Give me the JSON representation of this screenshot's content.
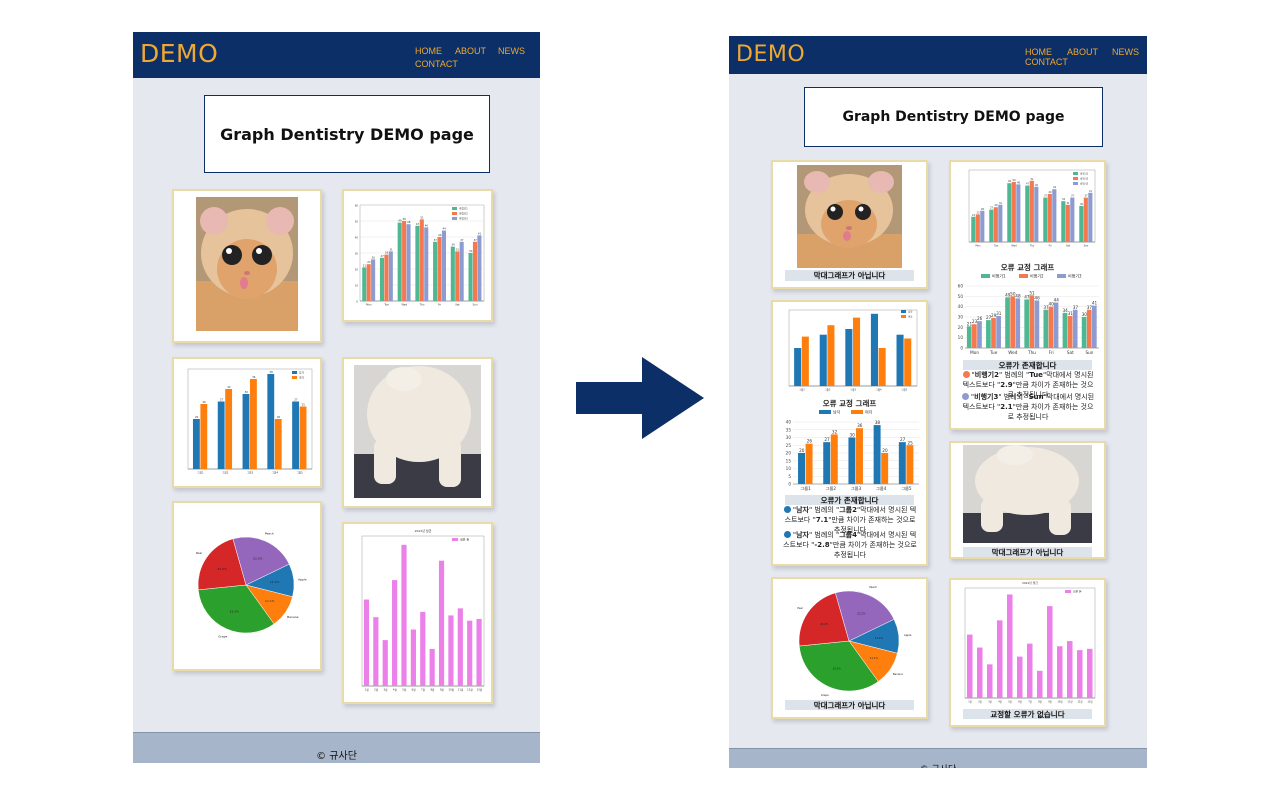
{
  "left_page": {
    "logo": "DEMO",
    "nav": [
      "HOME",
      "ABOUT",
      "NEWS",
      "CONTACT"
    ],
    "title": "Graph Dentistry DEMO page",
    "footer": "© 규사단"
  },
  "right_page": {
    "logo": "DEMO",
    "nav": [
      "HOME",
      "ABOUT",
      "NEWS",
      "CONTACT"
    ],
    "title": "Graph Dentistry DEMO page",
    "footer": "© 규사단",
    "captions": {
      "not_bar_1": "막대그래프가 아닙니다",
      "not_bar_2": "막대그래프가 아닙니다",
      "not_bar_3": "막대그래프가 아닙니다",
      "no_error": "교정할 오류가 없습니다",
      "error_exists_1": "오류가 존재합니다",
      "error_exists_2": "오류가 존재합니다",
      "corrected_1": "오류 교정 그래프",
      "corrected_2": "오류 교정 그래프"
    },
    "notes_1": [
      {
        "color": "#1f77b4",
        "pre": "\"",
        "s1": "남자",
        "m1": "\" 범례의 \"",
        "s2": "그룹2",
        "m2": "\"막대에서 명시된 텍스트보다 \"",
        "s3": "7.1",
        "post": "\"만큼 차이가 존재하는 것으로 추정됩니다"
      },
      {
        "color": "#1f77b4",
        "pre": "\"",
        "s1": "남자",
        "m1": "\" 범례의 \"",
        "s2": "그룹4",
        "m2": "\"막대에서 명시된 텍스트보다 \"",
        "s3": "-2.8",
        "post": "\"만큼 차이가 존재하는 것으로 추정됩니다"
      }
    ],
    "notes_2": [
      {
        "color": "#f4794f",
        "pre": "\"",
        "s1": "비행기2",
        "m1": "\" 범례의 \"",
        "s2": "Tue",
        "m2": "\"막대에서 명시된 텍스트보다 \"",
        "s3": "2.9",
        "post": "\"만큼 차이가 존재하는 것으로 추정됩니다"
      },
      {
        "color": "#8e9bd0",
        "pre": "\"",
        "s1": "비행기3",
        "m1": "\" 범례의 \"",
        "s2": "Sun",
        "m2": "\"막대에서 명시된 텍스트보다 \"",
        "s3": "2.1",
        "post": "\"만큼 차이가 존재하는 것으로 추정됩니다"
      }
    ]
  },
  "colors": {
    "header_bg": "#0b2f66",
    "logo": "#f0a830",
    "card_border": "#e9dba8",
    "page_bg": "#e5e9ef",
    "footer_bg": "#a6b5c9",
    "arrow": "#0b2f66"
  },
  "chart_data": [
    {
      "id": "airplane",
      "type": "bar",
      "categories": [
        "Mon",
        "Tue",
        "Wed",
        "Thu",
        "Fri",
        "Sat",
        "Sun"
      ],
      "series": [
        {
          "name": "비행기1",
          "values": [
            21,
            27,
            49,
            47,
            37,
            34,
            30
          ],
          "color": "#4fb892"
        },
        {
          "name": "비행기2",
          "values": [
            23,
            29,
            50,
            51,
            40,
            31,
            37
          ],
          "color": "#f4794f"
        },
        {
          "name": "비행기3",
          "values": [
            26,
            31,
            48,
            46,
            44,
            37,
            41
          ],
          "color": "#8e9bd0"
        }
      ],
      "ylim": [
        0,
        60
      ],
      "yticks": [
        0,
        10,
        20,
        30,
        40,
        50,
        60
      ]
    },
    {
      "id": "gender",
      "type": "bar",
      "categories": [
        "그룹1",
        "그룹2",
        "그룹3",
        "그룹4",
        "그룹5"
      ],
      "series": [
        {
          "name": "남자",
          "values": [
            20,
            27,
            30,
            38,
            27
          ],
          "color": "#1f77b4"
        },
        {
          "name": "여자",
          "values": [
            26,
            32,
            36,
            20,
            25
          ],
          "color": "#ff7f0e"
        }
      ],
      "ylim": [
        0,
        40
      ],
      "yticks": [
        0,
        5,
        10,
        15,
        20,
        25,
        30,
        35,
        40
      ]
    },
    {
      "id": "fruit",
      "type": "pie",
      "labels": [
        "Apple",
        "Banana",
        "Grape",
        "Pear",
        "Peach"
      ],
      "values": [
        11.1,
        11.1,
        33.3,
        22.2,
        22.2
      ],
      "colors": [
        "#1f77b4",
        "#ff7f0e",
        "#2ca02c",
        "#d62728",
        "#9467bd"
      ]
    },
    {
      "id": "monthly",
      "type": "bar",
      "title": "2022년 월급",
      "categories": [
        "1월",
        "2월",
        "3월",
        "4월",
        "5월",
        "6월",
        "7월",
        "8월",
        "9월",
        "10월",
        "11월",
        "12월",
        "13월"
      ],
      "series": [
        {
          "name": "실은 돈",
          "values": [
            4900,
            3900,
            2600,
            6000,
            8000,
            3200,
            4200,
            2100,
            7100,
            4000,
            4400,
            3700,
            3800
          ],
          "color": "#ea80e8"
        }
      ],
      "ylim": [
        0,
        8500
      ]
    }
  ]
}
